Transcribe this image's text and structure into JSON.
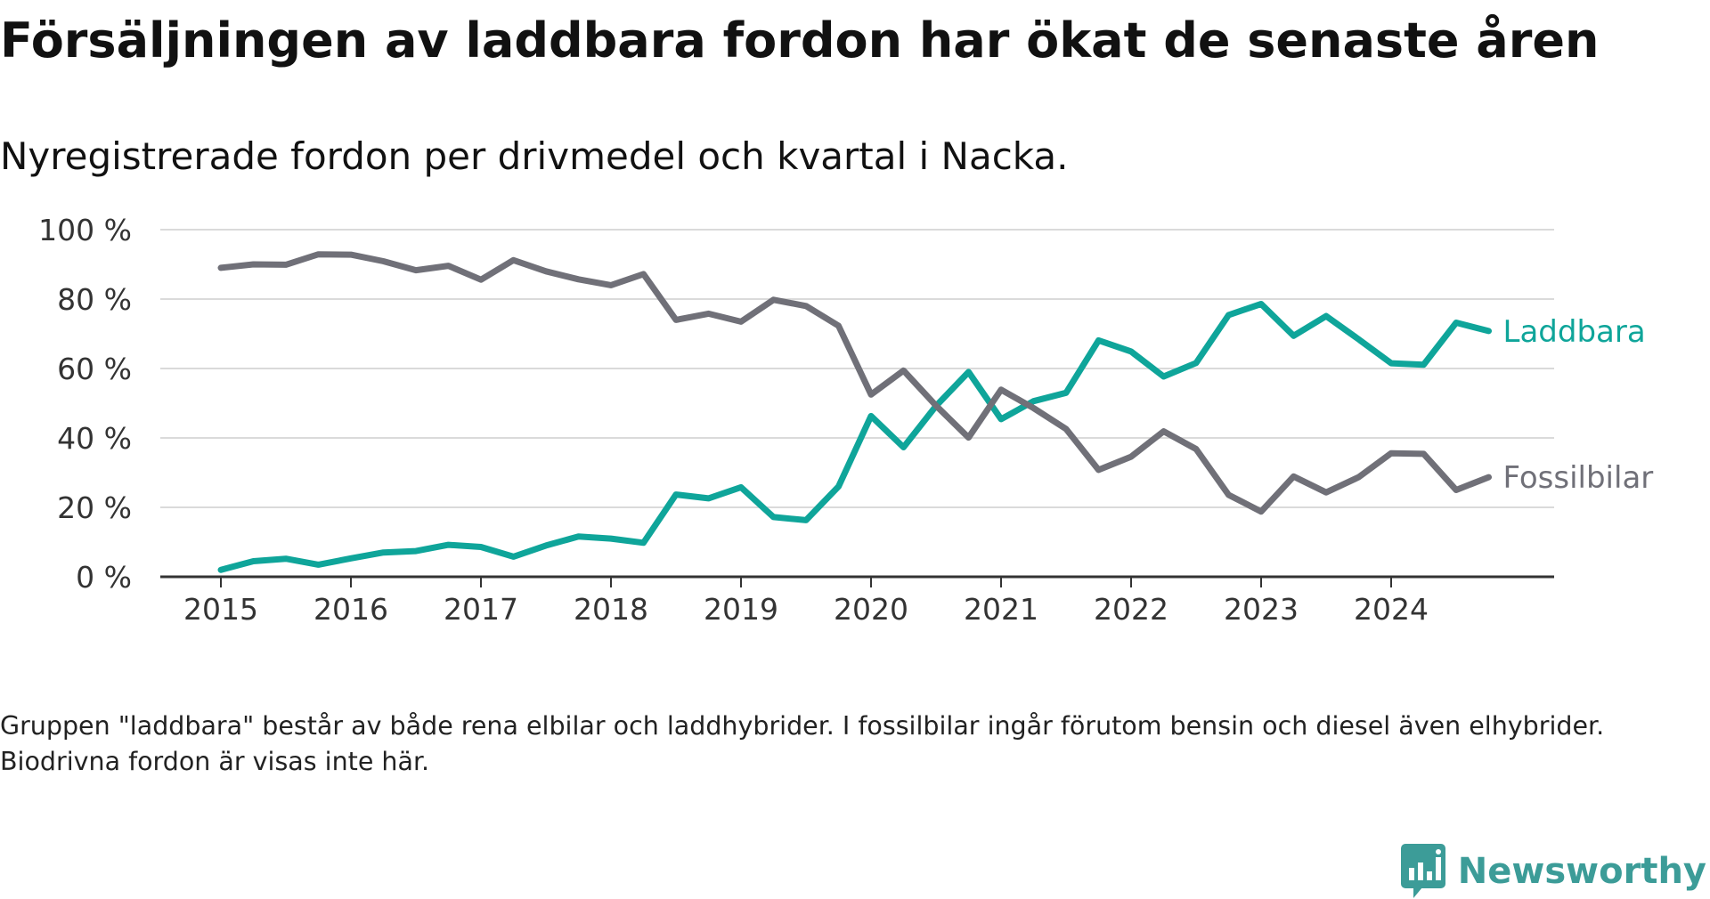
{
  "title": "Försäljningen av laddbara fordon har ökat de senaste åren",
  "subtitle": "Nyregistrerade fordon per drivmedel och kvartal i Nacka.",
  "note": "Gruppen \"laddbara\" består av både rena elbilar och laddhybrider. I fossilbilar ingår förutom bensin och diesel även elhybrider. Biodrivna fordon är visas inte här.",
  "brand": {
    "name": "Newsworthy",
    "logo_icon": "newsworthy-logo-icon",
    "color": "#3c9c98"
  },
  "chart_data": {
    "type": "line",
    "title": "Försäljningen av laddbara fordon har ökat de senaste åren",
    "subtitle": "Nyregistrerade fordon per drivmedel och kvartal i Nacka.",
    "xlabel": "",
    "ylabel": "",
    "ylim": [
      0,
      100
    ],
    "yticks": [
      0,
      20,
      40,
      60,
      80,
      100
    ],
    "ytick_labels": [
      "0 %",
      "20 %",
      "40 %",
      "60 %",
      "80 %",
      "100 %"
    ],
    "xlim": [
      2015,
      2025.1
    ],
    "xticks": [
      2015,
      2016,
      2017,
      2018,
      2019,
      2020,
      2021,
      2022,
      2023,
      2024
    ],
    "xtick_labels": [
      "2015",
      "2016",
      "2017",
      "2018",
      "2019",
      "2020",
      "2021",
      "2022",
      "2023",
      "2024"
    ],
    "grid": true,
    "legend": "inline labels at line ends",
    "x": [
      2015,
      2015.25,
      2015.5,
      2015.75,
      2016,
      2016.25,
      2016.5,
      2016.75,
      2017,
      2017.25,
      2017.5,
      2017.75,
      2018,
      2018.25,
      2018.5,
      2018.75,
      2019,
      2019.25,
      2019.5,
      2019.75,
      2020,
      2020.25,
      2020.5,
      2020.75,
      2021,
      2021.25,
      2021.5,
      2021.75,
      2022,
      2022.25,
      2022.5,
      2022.75,
      2023,
      2023.25,
      2023.5,
      2023.75,
      2024,
      2024.25,
      2024.5,
      2024.75
    ],
    "series": [
      {
        "name": "Laddbara",
        "color": "#0fa59a",
        "values": [
          2,
          4.5,
          5.2,
          3.5,
          5.3,
          7,
          7.4,
          9.2,
          8.6,
          5.8,
          9,
          11.6,
          11,
          9.8,
          23.7,
          22.6,
          25.8,
          17.2,
          16.3,
          26,
          46.3,
          37.3,
          49.2,
          59,
          45.4,
          50.6,
          53,
          68.1,
          64.9,
          57.7,
          61.6,
          75.4,
          78.6,
          69.4,
          75.1,
          68.4,
          61.5,
          61.1,
          73.2,
          70.8
        ]
      },
      {
        "name": "Fossilbilar",
        "color": "#707078",
        "values": [
          89,
          90,
          89.9,
          92.9,
          92.8,
          90.9,
          88.3,
          89.6,
          85.6,
          91.2,
          88,
          85.7,
          84,
          87.2,
          74,
          75.8,
          73.5,
          79.8,
          78,
          72.3,
          52.5,
          59.4,
          49.3,
          40.1,
          53.9,
          48.6,
          42.6,
          30.8,
          34.6,
          41.9,
          36.8,
          23.6,
          18.8,
          28.9,
          24.3,
          28.7,
          35.6,
          35.4,
          25,
          28.7
        ]
      }
    ]
  }
}
